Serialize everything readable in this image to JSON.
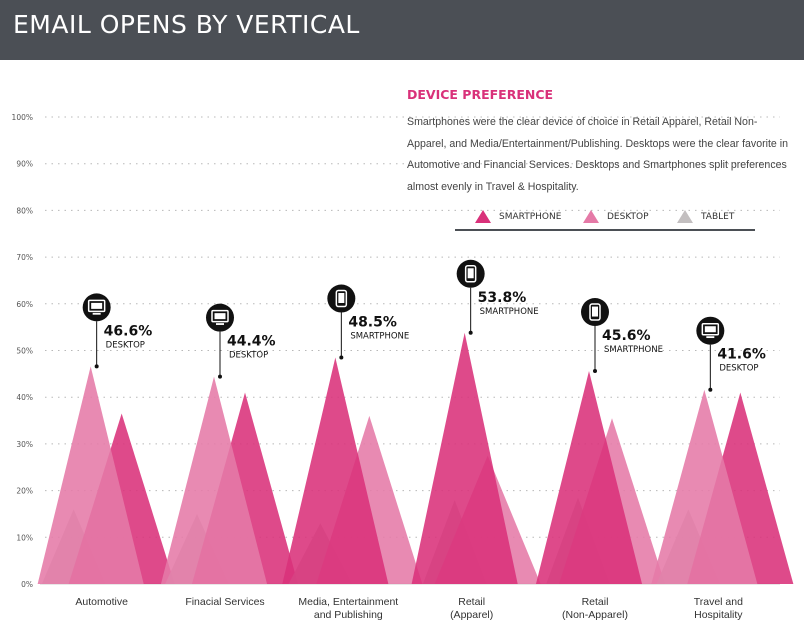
{
  "header": {
    "title": "EMAIL OPENS BY VERTICAL"
  },
  "preference": {
    "title": "DEVICE PREFERENCE",
    "body": "Smartphones were the clear device of choice in Retail Apparel, Retail Non-Apparel, and Media/Entertainment/Publishing. Desktops were the clear favorite in Automotive and Financial Services. Desktops and Smartphones split preferences almost evenly in Travel & Hospitality."
  },
  "colors": {
    "smartphone": "#d9317a",
    "desktop": "#e57aa7",
    "tablet": "#c3bfc0",
    "header_bg": "#4b4f55"
  },
  "chart_data": {
    "type": "area",
    "categories": [
      [
        "Automotive"
      ],
      [
        "Finacial Services"
      ],
      [
        "Media, Entertainment",
        "and Publishing"
      ],
      [
        "Retail",
        "(Apparel)"
      ],
      [
        "Retail",
        "(Non-Apparel)"
      ],
      [
        "Travel and",
        "Hospitality"
      ]
    ],
    "series": [
      {
        "name": "SMARTPHONE",
        "values": [
          36.5,
          41,
          48.5,
          53.8,
          45.6,
          41
        ]
      },
      {
        "name": "DESKTOP",
        "values": [
          46.6,
          44.4,
          36,
          27.5,
          35.5,
          41.6
        ]
      },
      {
        "name": "TABLET",
        "values": [
          16,
          15,
          13,
          18,
          18.5,
          16
        ]
      }
    ],
    "yticks": [
      "0%",
      "10%",
      "20%",
      "30%",
      "40%",
      "50%",
      "60%",
      "70%",
      "80%",
      "90%",
      "100%"
    ],
    "ylim": [
      0,
      100
    ],
    "callouts": [
      {
        "value": "46.6%",
        "device": "DESKTOP",
        "icon": "desktop-icon"
      },
      {
        "value": "44.4%",
        "device": "DESKTOP",
        "icon": "desktop-icon"
      },
      {
        "value": "48.5%",
        "device": "SMARTPHONE",
        "icon": "smartphone-icon"
      },
      {
        "value": "53.8%",
        "device": "SMARTPHONE",
        "icon": "smartphone-icon"
      },
      {
        "value": "45.6%",
        "device": "SMARTPHONE",
        "icon": "smartphone-icon"
      },
      {
        "value": "41.6%",
        "device": "DESKTOP",
        "icon": "desktop-icon"
      }
    ],
    "legend_position": "top-right"
  }
}
